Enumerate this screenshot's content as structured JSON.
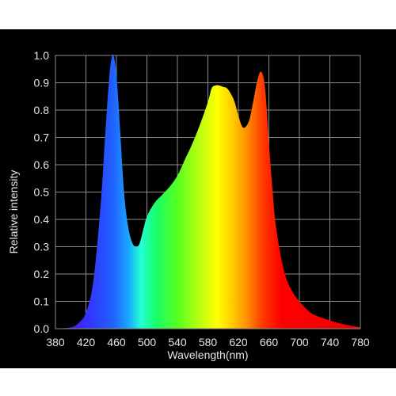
{
  "chart_data": {
    "type": "area",
    "title": "",
    "xlabel": "Wavelength(nm)",
    "ylabel": "Relative intensity",
    "xlim": [
      380,
      780
    ],
    "ylim": [
      0,
      1.0
    ],
    "grid": true,
    "x_ticks": [
      "380",
      "420",
      "460",
      "500",
      "540",
      "580",
      "620",
      "660",
      "700",
      "740",
      "780"
    ],
    "y_ticks": [
      "0.0",
      "0.1",
      "0.2",
      "0.3",
      "0.4",
      "0.5",
      "0.6",
      "0.7",
      "0.8",
      "0.9",
      "1.0"
    ],
    "fill": "visible-spectrum gradient",
    "x": [
      380,
      400,
      410,
      420,
      430,
      440,
      445,
      450,
      453,
      456,
      460,
      465,
      470,
      475,
      480,
      485,
      490,
      495,
      500,
      510,
      520,
      530,
      540,
      550,
      560,
      570,
      580,
      585,
      590,
      595,
      600,
      605,
      610,
      615,
      620,
      625,
      630,
      635,
      640,
      645,
      650,
      655,
      660,
      665,
      670,
      680,
      690,
      700,
      710,
      720,
      740,
      760,
      780
    ],
    "values": [
      0.0,
      0.005,
      0.02,
      0.06,
      0.18,
      0.48,
      0.7,
      0.9,
      0.98,
      1.0,
      0.93,
      0.72,
      0.5,
      0.38,
      0.32,
      0.3,
      0.31,
      0.36,
      0.41,
      0.46,
      0.49,
      0.52,
      0.56,
      0.62,
      0.68,
      0.75,
      0.83,
      0.88,
      0.89,
      0.89,
      0.885,
      0.88,
      0.86,
      0.83,
      0.78,
      0.74,
      0.74,
      0.77,
      0.84,
      0.91,
      0.94,
      0.88,
      0.68,
      0.5,
      0.36,
      0.21,
      0.14,
      0.1,
      0.07,
      0.05,
      0.03,
      0.015,
      0.005
    ]
  },
  "colors": {
    "background": "#000000",
    "grid": "#8c8c8c",
    "text": "#e6e6e6"
  }
}
